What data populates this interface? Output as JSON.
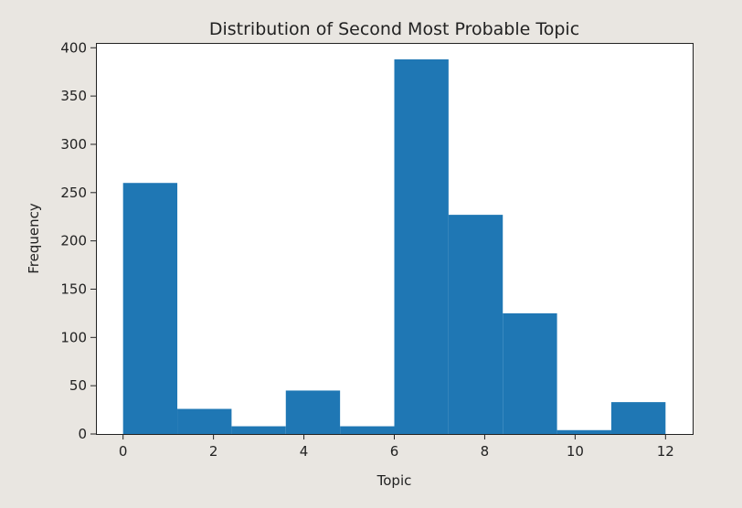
{
  "chart_data": {
    "type": "bar",
    "title": "Distribution of Second Most Probable Topic",
    "xlabel": "Topic",
    "ylabel": "Frequency",
    "x_ticks": [
      0,
      2,
      4,
      6,
      8,
      10,
      12
    ],
    "y_ticks": [
      0,
      50,
      100,
      150,
      200,
      250,
      300,
      350,
      400
    ],
    "xlim": [
      -0.6,
      12.6
    ],
    "ylim": [
      0,
      405
    ],
    "bins": [
      {
        "start": 0.0,
        "end": 1.2,
        "value": 260
      },
      {
        "start": 1.2,
        "end": 2.4,
        "value": 26
      },
      {
        "start": 2.4,
        "end": 3.6,
        "value": 8
      },
      {
        "start": 3.6,
        "end": 4.8,
        "value": 45
      },
      {
        "start": 4.8,
        "end": 6.0,
        "value": 8
      },
      {
        "start": 6.0,
        "end": 7.2,
        "value": 388
      },
      {
        "start": 7.2,
        "end": 8.4,
        "value": 227
      },
      {
        "start": 8.4,
        "end": 9.6,
        "value": 125
      },
      {
        "start": 9.6,
        "end": 10.8,
        "value": 4
      },
      {
        "start": 10.8,
        "end": 12.0,
        "value": 33
      }
    ],
    "grid": false,
    "bar_color": "#1f77b4",
    "background_color": "#e9e6e1",
    "plot_background_color": "#ffffff"
  }
}
